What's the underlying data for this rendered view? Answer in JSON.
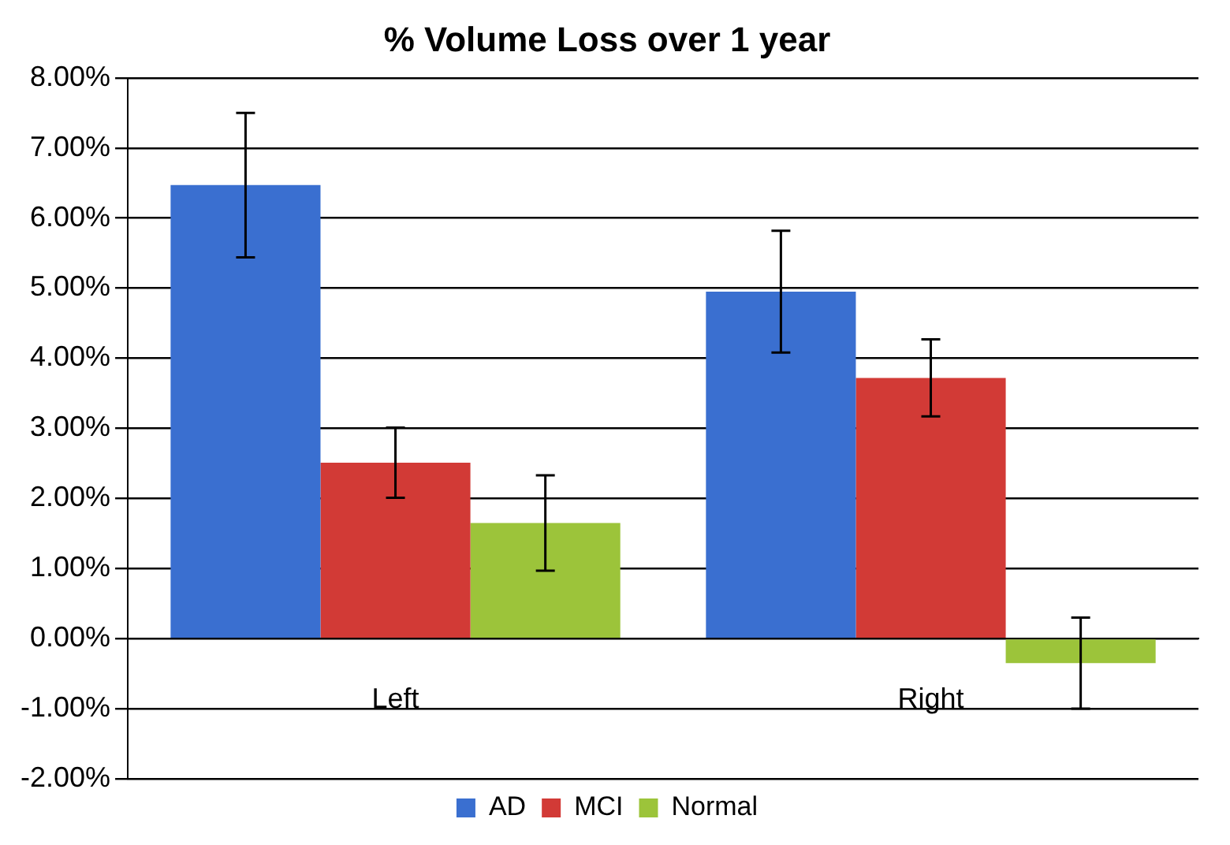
{
  "chart_data": {
    "type": "bar",
    "title": "% Volume Loss over 1 year",
    "categories": [
      "Left",
      "Right"
    ],
    "series": [
      {
        "name": "AD",
        "color": "#3a6fd0",
        "values": [
          6.47,
          4.95
        ],
        "errors": [
          1.03,
          0.87
        ]
      },
      {
        "name": "MCI",
        "color": "#d23a36",
        "values": [
          2.51,
          3.72
        ],
        "errors": [
          0.5,
          0.55
        ]
      },
      {
        "name": "Normal",
        "color": "#9cc43a",
        "values": [
          1.65,
          -0.35
        ],
        "errors": [
          0.68,
          0.65
        ]
      }
    ],
    "ylim": [
      -2,
      8
    ],
    "yticks": [
      {
        "value": -2,
        "label": "-2.00%"
      },
      {
        "value": -1,
        "label": "-1.00%"
      },
      {
        "value": 0,
        "label": "0.00%"
      },
      {
        "value": 1,
        "label": "1.00%"
      },
      {
        "value": 2,
        "label": "2.00%"
      },
      {
        "value": 3,
        "label": "3.00%"
      },
      {
        "value": 4,
        "label": "4.00%"
      },
      {
        "value": 5,
        "label": "5.00%"
      },
      {
        "value": 6,
        "label": "6.00%"
      },
      {
        "value": 7,
        "label": "7.00%"
      },
      {
        "value": 8,
        "label": "8.00%"
      }
    ],
    "grid": "y",
    "legend": "bottom"
  }
}
